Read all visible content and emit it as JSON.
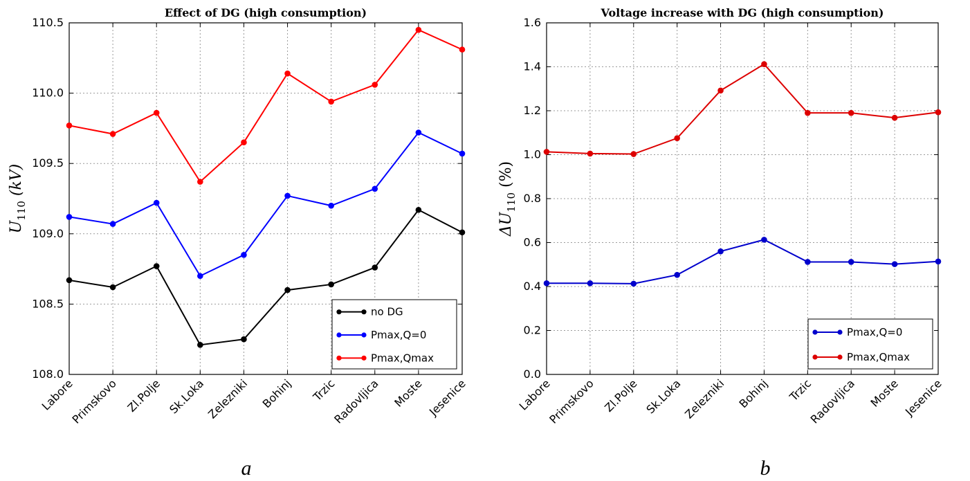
{
  "chart_data": [
    {
      "type": "line",
      "title": "Effect of DG (high consumption)",
      "ylabel": "U_110 (kV)",
      "ylim": [
        108.0,
        110.5
      ],
      "yticks": [
        "108.0",
        "108.5",
        "109.0",
        "109.5",
        "110.0",
        "110.5"
      ],
      "categories": [
        "Labore",
        "Primskovo",
        "Zl.Polje",
        "Sk.Loka",
        "Zelezniki",
        "Bohinj",
        "Trzic",
        "Radovljica",
        "Moste",
        "Jesenice"
      ],
      "grid": true,
      "legend_position": "lower-right",
      "caption": "a",
      "series": [
        {
          "name": "no DG",
          "color": "#000000",
          "values": [
            108.67,
            108.62,
            108.77,
            108.21,
            108.25,
            108.6,
            108.64,
            108.76,
            109.17,
            109.01
          ]
        },
        {
          "name": "Pmax,Q=0",
          "color": "#0000ff",
          "values": [
            109.12,
            109.07,
            109.22,
            108.7,
            108.85,
            109.27,
            109.2,
            109.32,
            109.72,
            109.57
          ]
        },
        {
          "name": "Pmax,Qmax",
          "color": "#ff0000",
          "values": [
            109.77,
            109.71,
            109.86,
            109.37,
            109.65,
            110.14,
            109.94,
            110.06,
            110.45,
            110.31
          ]
        }
      ]
    },
    {
      "type": "line",
      "title": "Voltage increase with DG (high consumption)",
      "ylabel": "ΔU_110 (%)",
      "ylim": [
        0.0,
        1.6
      ],
      "yticks": [
        "0.0",
        "0.2",
        "0.4",
        "0.6",
        "0.8",
        "1.0",
        "1.2",
        "1.4",
        "1.6"
      ],
      "categories": [
        "Labore",
        "Primskovo",
        "Zl.Polje",
        "Sk.Loka",
        "Zelezniki",
        "Bohinj",
        "Trzic",
        "Radovljica",
        "Moste",
        "Jesenice"
      ],
      "grid": true,
      "legend_position": "lower-right",
      "caption": "b",
      "series": [
        {
          "name": "Pmax,Q=0",
          "color": "#0000cc",
          "values": [
            0.415,
            0.415,
            0.413,
            0.453,
            0.56,
            0.613,
            0.512,
            0.512,
            0.502,
            0.514
          ]
        },
        {
          "name": "Pmax,Qmax",
          "color": "#dd0000",
          "values": [
            1.013,
            1.005,
            1.003,
            1.075,
            1.292,
            1.412,
            1.19,
            1.19,
            1.168,
            1.193
          ]
        }
      ]
    }
  ]
}
